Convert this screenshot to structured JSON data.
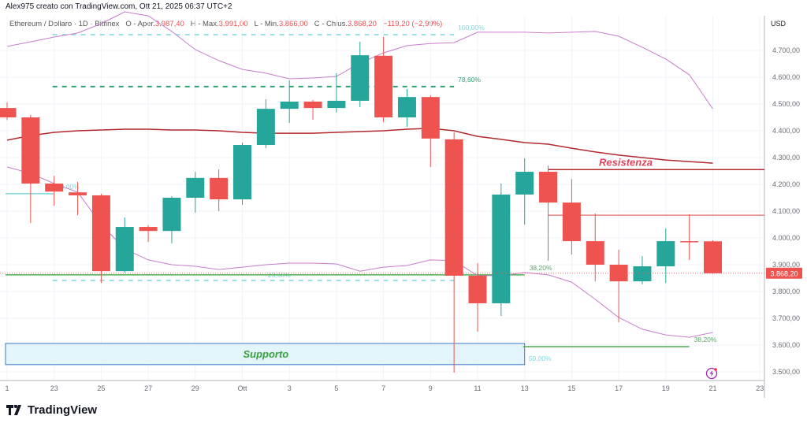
{
  "header": {
    "credit": "Alex975 creato con TradingView.com, Ott 21, 2025 06:37 UTC+2",
    "symbol": "Ethereum / Dollaro · 1D · Bitfinex",
    "open_label": "O - Aper.",
    "open": "3.987,40",
    "high_label": "H - Max.",
    "high": "3.991,00",
    "low_label": "L - Min.",
    "low": "3.866,00",
    "close_label": "C - Chius.",
    "close": "3.868,20",
    "change": "−119,20 (−2,99%)"
  },
  "brand": "TradingView",
  "colors": {
    "up": "#26a69a",
    "down": "#ef5350",
    "band": "#c77dcc",
    "basis": "#b2292e",
    "fib_cyan": "#7fd6df",
    "fib_green": "#2e9e6e",
    "support": "#4caf50",
    "box": "#2962ff",
    "resist": "#b2292e",
    "resist_label": "#e0445a"
  },
  "chart_data": {
    "type": "candlestick",
    "currency": "USD",
    "ylim": [
      3460,
      4820
    ],
    "y_ticks": [
      "4.700,00",
      "4.600,00",
      "4.500,00",
      "4.400,00",
      "4.300,00",
      "4.200,00",
      "4.100,00",
      "4.000,00",
      "3.900,00",
      "3.800,00",
      "3.700,00",
      "3.600,00",
      "3.500,00"
    ],
    "y_tick_values": [
      4700,
      4600,
      4500,
      4400,
      4300,
      4200,
      4100,
      4000,
      3900,
      3800,
      3700,
      3600,
      3500
    ],
    "x_ticks": [
      "1",
      "23",
      "25",
      "27",
      "29",
      "Ott",
      "3",
      "5",
      "7",
      "9",
      "11",
      "13",
      "15",
      "17",
      "19",
      "21",
      "23"
    ],
    "x_tick_index": [
      0,
      2,
      4,
      6,
      8,
      10,
      12,
      14,
      16,
      18,
      20,
      22,
      24,
      26,
      28,
      30,
      32
    ],
    "first_date": "2025-09-21",
    "last_price_label": "3.868,20",
    "last_price": 3868.2,
    "candles": [
      [
        4485,
        4505,
        4440,
        4450
      ],
      [
        4450,
        4460,
        4056,
        4203
      ],
      [
        4203,
        4232,
        4120,
        4173
      ],
      [
        4170,
        4209,
        4085,
        4159
      ],
      [
        4159,
        4165,
        3832,
        3876
      ],
      [
        3876,
        4076,
        3870,
        4041
      ],
      [
        4041,
        4047,
        3985,
        4026
      ],
      [
        4026,
        4156,
        3980,
        4150
      ],
      [
        4150,
        4247,
        4094,
        4224
      ],
      [
        4224,
        4256,
        4100,
        4144
      ],
      [
        4144,
        4356,
        4124,
        4347
      ],
      [
        4347,
        4518,
        4335,
        4482
      ],
      [
        4482,
        4588,
        4429,
        4509
      ],
      [
        4509,
        4515,
        4441,
        4485
      ],
      [
        4485,
        4615,
        4468,
        4512
      ],
      [
        4512,
        4732,
        4488,
        4682
      ],
      [
        4680,
        4750,
        4432,
        4450
      ],
      [
        4450,
        4556,
        4415,
        4526
      ],
      [
        4526,
        4532,
        4265,
        4371
      ],
      [
        4368,
        4394,
        3497,
        3859
      ],
      [
        3859,
        3906,
        3650,
        3756
      ],
      [
        3756,
        4203,
        3709,
        4162
      ],
      [
        4162,
        4297,
        4050,
        4247
      ],
      [
        4247,
        4270,
        3915,
        4132
      ],
      [
        4132,
        4220,
        3938,
        3988
      ],
      [
        3988,
        4091,
        3838,
        3900
      ],
      [
        3900,
        3956,
        3685,
        3838
      ],
      [
        3838,
        3932,
        3827,
        3894
      ],
      [
        3894,
        4035,
        3832,
        3988
      ],
      [
        3988,
        4088,
        3918,
        3985
      ],
      [
        3987.4,
        3991,
        3866,
        3868.2
      ]
    ],
    "bands": {
      "upper": [
        4715,
        4732,
        4750,
        4765,
        4800,
        4844,
        4829,
        4771,
        4703,
        4662,
        4629,
        4615,
        4594,
        4597,
        4603,
        4653,
        4691,
        4718,
        4726,
        4729,
        4768,
        4768,
        4768,
        4765,
        4768,
        4771,
        4753,
        4712,
        4668,
        4609,
        4482
      ],
      "middle": [
        4365,
        4382,
        4394,
        4400,
        4403,
        4406,
        4406,
        4403,
        4403,
        4400,
        4394,
        4391,
        4391,
        4391,
        4394,
        4397,
        4400,
        4406,
        4409,
        4400,
        4379,
        4368,
        4356,
        4350,
        4335,
        4321,
        4309,
        4300,
        4291,
        4285,
        4279
      ],
      "lower": [
        4265,
        4241,
        4203,
        4171,
        4050,
        3959,
        3918,
        3900,
        3894,
        3882,
        3891,
        3900,
        3906,
        3906,
        3903,
        3876,
        3891,
        3897,
        3918,
        3915,
        3859,
        3859,
        3871,
        3862,
        3835,
        3771,
        3703,
        3659,
        3638,
        3629,
        3647
      ]
    },
    "annotations": {
      "fib_lines": [
        {
          "label": "100,00%",
          "price": 4759,
          "from": 2,
          "to": 19,
          "style": "dashed",
          "color": "cyan"
        },
        {
          "label": "78,60%",
          "price": 4565,
          "from": 2,
          "to": 19,
          "style": "dashed",
          "color": "green"
        },
        {
          "label": "0,00%",
          "price": 4165,
          "from": 0,
          "to": 2,
          "style": "solid",
          "color": "cyan"
        },
        {
          "label": "23,60%",
          "price": 3841,
          "from": 2,
          "to": 19,
          "style": "dashed",
          "color": "cyan"
        }
      ],
      "support_lines": [
        {
          "label": "38,20%",
          "price": 3862,
          "from": 0,
          "to": 22
        },
        {
          "label": "38,20%",
          "price": 3594,
          "from": 22,
          "to": 29
        }
      ],
      "support_zone": {
        "label": "Supporto",
        "low": 3527,
        "high": 3606,
        "from": 0,
        "to": 22,
        "fib_label": "50,00%"
      },
      "resistance": {
        "label": "Resistenza",
        "price": 4255,
        "from": 23
      },
      "resistance_2": {
        "price": 4085,
        "from": 23
      }
    }
  }
}
